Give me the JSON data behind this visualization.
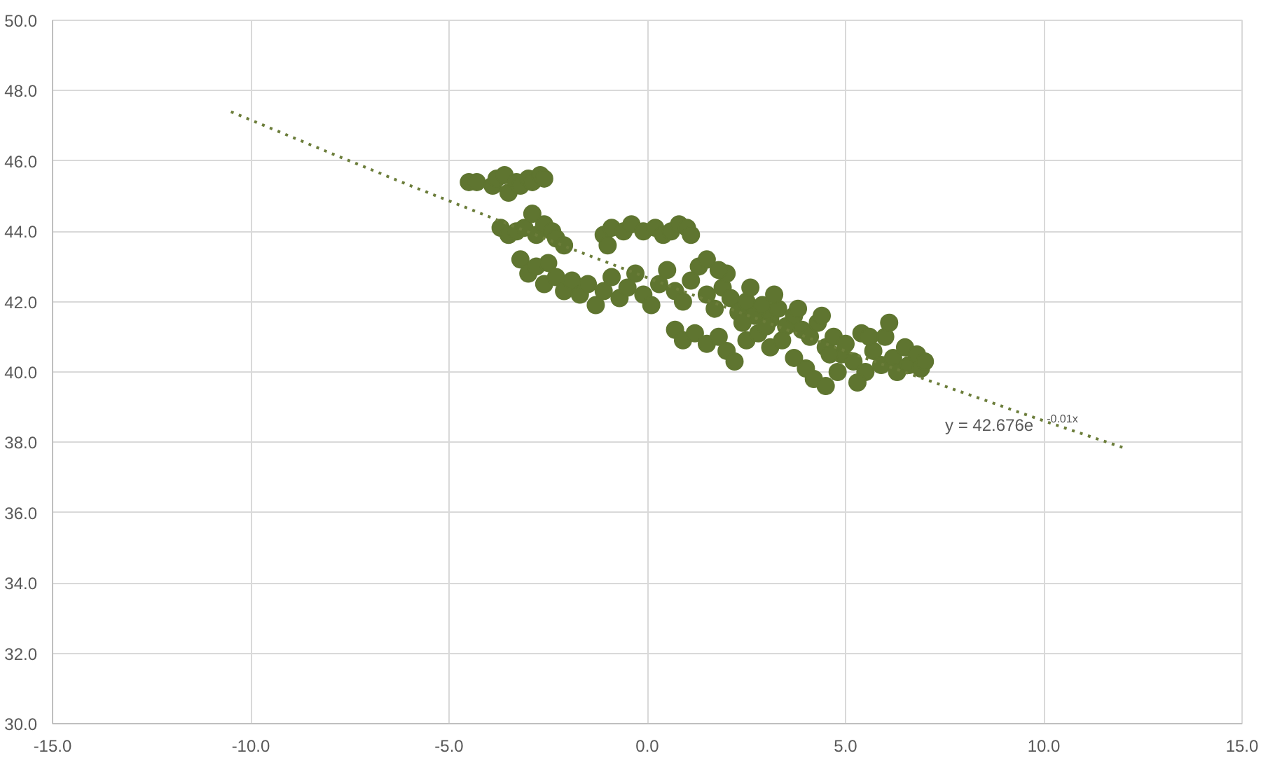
{
  "chart_data": {
    "type": "scatter",
    "grid": true,
    "xlim": [
      -15,
      15
    ],
    "xticks": [
      {
        "value": -15,
        "label": "-15.0"
      },
      {
        "value": -10,
        "label": "-10.0"
      },
      {
        "value": -5,
        "label": "-5.0"
      },
      {
        "value": 0,
        "label": "0.0"
      },
      {
        "value": 5,
        "label": "5.0"
      },
      {
        "value": 10,
        "label": "10.0"
      },
      {
        "value": 15,
        "label": "15.0"
      }
    ],
    "ylim": [
      30,
      50
    ],
    "yticks": [
      {
        "value": 30,
        "label": "30.0"
      },
      {
        "value": 32,
        "label": "32.0"
      },
      {
        "value": 34,
        "label": "34.0"
      },
      {
        "value": 36,
        "label": "36.0"
      },
      {
        "value": 38,
        "label": "38.0"
      },
      {
        "value": 40,
        "label": "40.0"
      },
      {
        "value": 42,
        "label": "42.0"
      },
      {
        "value": 44,
        "label": "44.0"
      },
      {
        "value": 46,
        "label": "46.0"
      },
      {
        "value": 48,
        "label": "48.0"
      },
      {
        "value": 50,
        "label": "50.0"
      }
    ],
    "annotations": [
      "y = 42.676e$^{-0.01x}$"
    ],
    "series": [
      {
        "marker": "circle",
        "color": "#5f7530",
        "x": [
          -4.5,
          -4.3,
          -3.9,
          -3.8,
          -3.6,
          -3.5,
          -3.3,
          -3.2,
          -3.0,
          -2.9,
          -2.7,
          -2.6,
          -3.7,
          -3.5,
          -3.3,
          -3.1,
          -2.9,
          -2.8,
          -2.6,
          -2.4,
          -2.3,
          -2.1,
          -3.2,
          -3.0,
          -2.8,
          -2.6,
          -2.5,
          -2.3,
          -2.1,
          -1.9,
          -1.7,
          -1.5,
          -1.3,
          -1.1,
          -0.9,
          -0.7,
          -0.5,
          -0.3,
          -0.1,
          0.1,
          0.3,
          0.5,
          0.7,
          0.9,
          1.1,
          1.3,
          1.5,
          1.7,
          1.9,
          2.1,
          2.3,
          2.5,
          2.7,
          2.9,
          3.1,
          3.3,
          3.5,
          3.7,
          3.9,
          4.1,
          4.3,
          4.5,
          4.7,
          4.9,
          -1.1,
          -0.9,
          -0.6,
          -0.4,
          -0.1,
          0.2,
          0.4,
          0.6,
          0.8,
          1.0,
          1.1,
          -1.0,
          0.7,
          0.9,
          1.2,
          1.5,
          1.8,
          2.0,
          2.2,
          2.5,
          2.8,
          3.1,
          3.4,
          3.7,
          4.0,
          4.2,
          4.5,
          4.8,
          5.0,
          5.2,
          5.4,
          5.5,
          5.7,
          5.9,
          6.0,
          6.2,
          6.3,
          6.5,
          6.6,
          6.8,
          6.9,
          7.0,
          5.3,
          4.6,
          6.1,
          5.6,
          1.5,
          2.0,
          2.6,
          3.2,
          3.8,
          4.4,
          1.8,
          3.0,
          2.4
        ],
        "values": [
          45.4,
          45.4,
          45.3,
          45.5,
          45.6,
          45.1,
          45.4,
          45.3,
          45.5,
          45.4,
          45.6,
          45.5,
          44.1,
          43.9,
          44.0,
          44.1,
          44.5,
          43.9,
          44.2,
          44.0,
          43.8,
          43.6,
          43.2,
          42.8,
          43.0,
          42.5,
          43.1,
          42.7,
          42.3,
          42.6,
          42.2,
          42.5,
          41.9,
          42.3,
          42.7,
          42.1,
          42.4,
          42.8,
          42.2,
          41.9,
          42.5,
          42.9,
          42.3,
          42.0,
          42.6,
          43.0,
          42.2,
          41.8,
          42.4,
          42.1,
          41.7,
          42.0,
          41.6,
          41.9,
          41.5,
          41.8,
          41.3,
          41.6,
          41.2,
          41.0,
          41.4,
          40.7,
          41.0,
          40.5,
          43.9,
          44.1,
          44.0,
          44.2,
          44.0,
          44.1,
          43.9,
          44.0,
          44.2,
          44.1,
          43.9,
          43.6,
          41.2,
          40.9,
          41.1,
          40.8,
          41.0,
          40.6,
          40.3,
          40.9,
          41.1,
          40.7,
          40.9,
          40.4,
          40.1,
          39.8,
          39.6,
          40.0,
          40.8,
          40.3,
          41.1,
          40.0,
          40.6,
          40.2,
          41.0,
          40.4,
          40.0,
          40.7,
          40.2,
          40.5,
          40.1,
          40.3,
          39.7,
          40.5,
          41.4,
          41.0,
          43.2,
          42.8,
          42.4,
          42.2,
          41.8,
          41.6,
          42.9,
          41.3,
          41.4
        ]
      },
      {
        "type": "line",
        "line_style": "dotted",
        "color": "#6b7d3a",
        "x": [
          -10.5,
          -8,
          -6,
          -4,
          -2,
          0,
          2,
          4,
          6,
          8,
          10,
          12
        ],
        "values": [
          47.4,
          46.23,
          45.31,
          44.42,
          43.54,
          42.68,
          41.83,
          41.0,
          40.19,
          39.4,
          38.61,
          37.85
        ]
      }
    ]
  }
}
